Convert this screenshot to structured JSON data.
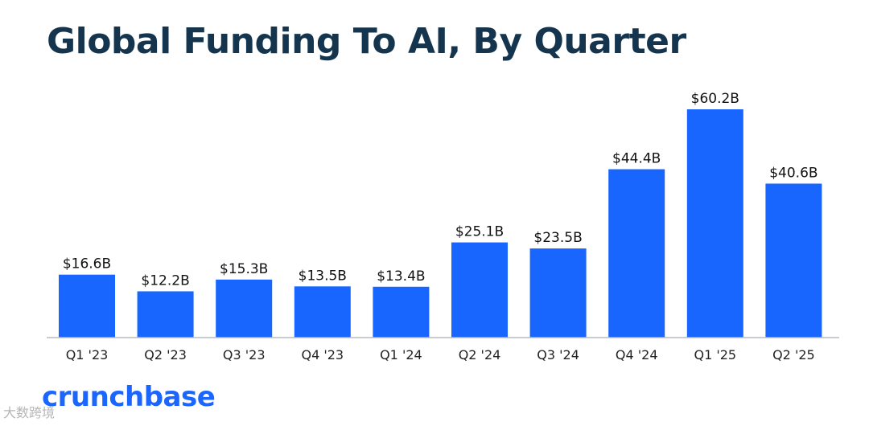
{
  "chart_data": {
    "type": "bar",
    "title": "Global Funding To AI, By Quarter",
    "categories": [
      "Q1 '23",
      "Q2 '23",
      "Q3 '23",
      "Q4 '23",
      "Q1 '24",
      "Q2 '24",
      "Q3 '24",
      "Q4 '24",
      "Q1 '25",
      "Q2 '25"
    ],
    "values": [
      16.6,
      12.2,
      15.3,
      13.5,
      13.4,
      25.1,
      23.5,
      44.4,
      60.2,
      40.6
    ],
    "value_labels": [
      "$16.6B",
      "$12.2B",
      "$15.3B",
      "$13.5B",
      "$13.4B",
      "$25.1B",
      "$23.5B",
      "$44.4B",
      "$60.2B",
      "$40.6B"
    ],
    "unit": "B USD",
    "ylim": [
      0,
      60.2
    ],
    "grid": false,
    "bar_color": "#1966ff"
  },
  "brand": {
    "logo_text": "crunchbase",
    "color": "#1a66ff"
  },
  "watermark": {
    "text": "大数跨境"
  }
}
